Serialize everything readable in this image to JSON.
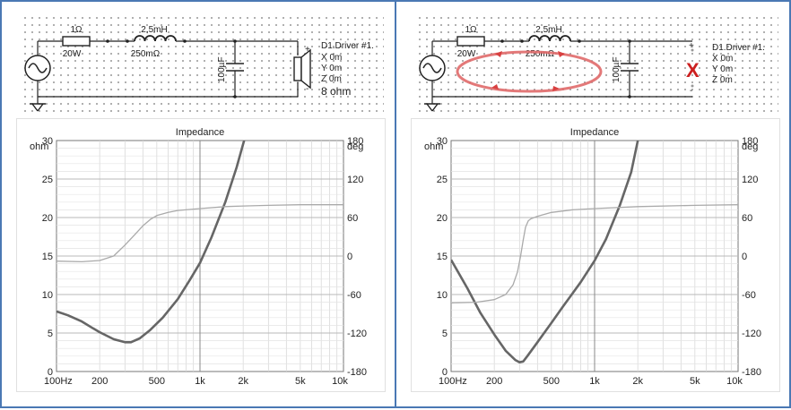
{
  "panels": [
    {
      "schematic": {
        "resistor": {
          "value": "1Ω",
          "power": "20W"
        },
        "inductor": {
          "value": "2,5mH",
          "resistance": "250mΩ"
        },
        "capacitor": {
          "value": "100µF"
        },
        "driver": {
          "name": "D1.Driver #1.",
          "x": "X 0m",
          "y": "Y 0m",
          "z": "Z 0m",
          "impedance": "8 ohm",
          "plus": "+",
          "minus": "-"
        }
      },
      "chart_data": {
        "type": "line",
        "title": "Impedance",
        "x_scale": "log",
        "xlim": [
          100,
          10000
        ],
        "x_ticks": [
          "100Hz",
          "200",
          "500",
          "1k",
          "2k",
          "5k",
          "10k"
        ],
        "x_tick_values": [
          100,
          200,
          500,
          1000,
          2000,
          5000,
          10000
        ],
        "ylim": [
          0,
          30
        ],
        "y_unit": "ohm",
        "y_ticks": [
          "30",
          "25",
          "20",
          "15",
          "10",
          "5",
          "0"
        ],
        "y2lim": [
          -180,
          180
        ],
        "y2_unit": "deg",
        "y2_ticks": [
          "180",
          "120",
          "60",
          "0",
          "-60",
          "-120",
          "-180"
        ],
        "grid": true,
        "series": [
          {
            "role": "impedance",
            "axis": "left",
            "color": "#666666",
            "x": [
              100,
              120,
              150,
              180,
              200,
              250,
              300,
              330,
              380,
              450,
              550,
              700,
              850,
              1000,
              1200,
              1500,
              1800,
              2100
            ],
            "y": [
              7.8,
              7.3,
              6.5,
              5.6,
              5.1,
              4.2,
              3.8,
              3.8,
              4.3,
              5.4,
              7.0,
              9.4,
              11.9,
              14.1,
              17.4,
              22.0,
              26.5,
              31
            ]
          },
          {
            "role": "phase",
            "axis": "right",
            "color": "#aaaaaa",
            "x": [
              100,
              150,
              200,
              250,
              300,
              350,
              400,
              450,
              500,
              600,
              700,
              1000,
              1500,
              2000,
              3000,
              5000,
              10000
            ],
            "y": [
              -8,
              -9,
              -7,
              0,
              17,
              33,
              47,
              57,
              63,
              68,
              71,
              74,
              77,
              78,
              79,
              80,
              80
            ]
          }
        ]
      }
    },
    {
      "schematic": {
        "resistor": {
          "value": "1Ω",
          "power": "20W"
        },
        "inductor": {
          "value": "2,5mH",
          "resistance": "250mΩ"
        },
        "capacitor": {
          "value": "100µF"
        },
        "driver": {
          "name": "D1.Driver #1.",
          "x": "X 0m",
          "y": "Y 0m",
          "z": "Z 0m",
          "plus": "+",
          "minus": "-"
        }
      },
      "chart_data": {
        "type": "line",
        "title": "Impedance",
        "x_scale": "log",
        "xlim": [
          100,
          10000
        ],
        "x_ticks": [
          "100Hz",
          "200",
          "500",
          "1k",
          "2k",
          "5k",
          "10k"
        ],
        "x_tick_values": [
          100,
          200,
          500,
          1000,
          2000,
          5000,
          10000
        ],
        "ylim": [
          0,
          30
        ],
        "y_unit": "ohm",
        "y_ticks": [
          "30",
          "25",
          "20",
          "15",
          "10",
          "5",
          "0"
        ],
        "y2lim": [
          -180,
          180
        ],
        "y2_unit": "deg",
        "y2_ticks": [
          "180",
          "120",
          "60",
          "0",
          "-60",
          "-120",
          "-180"
        ],
        "grid": true,
        "series": [
          {
            "role": "impedance",
            "axis": "left",
            "color": "#666666",
            "x": [
              100,
              130,
              160,
              200,
              240,
              280,
              300,
              318,
              340,
              400,
              500,
              600,
              800,
              1000,
              1200,
              1500,
              1800,
              2000
            ],
            "y": [
              14.5,
              10.8,
              7.6,
              4.8,
              2.7,
              1.5,
              1.2,
              1.3,
              2.0,
              3.8,
              6.3,
              8.4,
              11.6,
              14.4,
              17.2,
              21.6,
              25.9,
              30
            ]
          },
          {
            "role": "phase",
            "axis": "right",
            "color": "#aaaaaa",
            "x": [
              100,
              150,
              200,
              240,
              270,
              290,
              305,
              318,
              330,
              345,
              360,
              400,
              500,
              700,
              1000,
              2000,
              5000,
              10000
            ],
            "y": [
              -73,
              -72,
              -68,
              -60,
              -45,
              -25,
              0,
              25,
              45,
              55,
              58,
              62,
              68,
              72,
              74,
              77,
              79,
              80
            ]
          }
        ]
      }
    }
  ]
}
